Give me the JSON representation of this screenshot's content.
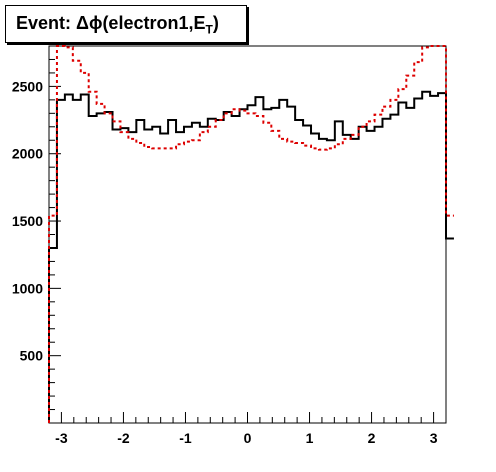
{
  "chart_data": {
    "type": "line",
    "title": "Event: Δϕ(electron1,E",
    "title_suffix_sub": "T",
    "title_close": ")",
    "xlim": [
      -3.2,
      3.2
    ],
    "ylim": [
      0,
      2800
    ],
    "x_ticks": [
      -3,
      -2,
      -1,
      0,
      1,
      2,
      3
    ],
    "x_tick_labels": [
      "-3",
      "-2",
      "-1",
      "0",
      "1",
      "2",
      "3"
    ],
    "y_ticks": [
      500,
      1000,
      1500,
      2000,
      2500
    ],
    "y_tick_labels": [
      "500",
      "1000",
      "1500",
      "2000",
      "2500"
    ],
    "bin_edges_start": -3.2,
    "bin_width": 0.128,
    "series": [
      {
        "color": "#000000",
        "style": "solid",
        "values": [
          1300,
          2400,
          2440,
          2400,
          2440,
          2280,
          2300,
          2310,
          2180,
          2190,
          2160,
          2250,
          2180,
          2200,
          2150,
          2250,
          2160,
          2200,
          2230,
          2200,
          2260,
          2250,
          2310,
          2280,
          2330,
          2360,
          2420,
          2330,
          2340,
          2400,
          2350,
          2250,
          2210,
          2150,
          2110,
          2100,
          2240,
          2140,
          2110,
          2200,
          2170,
          2200,
          2260,
          2290,
          2380,
          2340,
          2410,
          2460,
          2430,
          2450,
          1370
        ]
      },
      {
        "color": "#dd0000",
        "style": "dotted",
        "values": [
          1540,
          2820,
          2790,
          2690,
          2600,
          2460,
          2370,
          2300,
          2240,
          2160,
          2110,
          2080,
          2050,
          2040,
          2040,
          2040,
          2070,
          2090,
          2100,
          2160,
          2200,
          2250,
          2300,
          2330,
          2320,
          2300,
          2280,
          2230,
          2170,
          2110,
          2090,
          2080,
          2060,
          2040,
          2030,
          2040,
          2070,
          2110,
          2140,
          2200,
          2240,
          2290,
          2350,
          2400,
          2480,
          2580,
          2680,
          2790,
          2820,
          2830,
          1540
        ]
      }
    ]
  }
}
